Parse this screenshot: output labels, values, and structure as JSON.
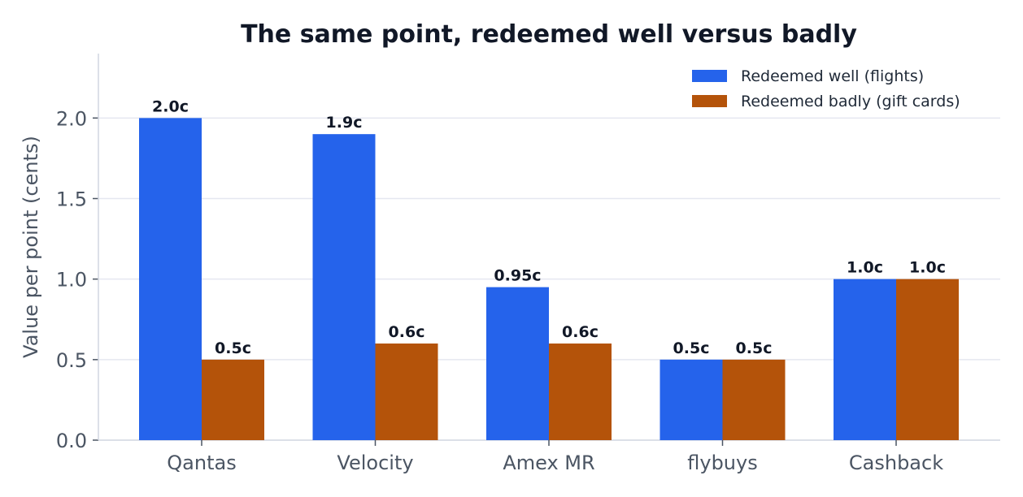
{
  "chart_data": {
    "type": "bar",
    "title": "The same point, redeemed well versus badly",
    "xlabel": "",
    "ylabel": "Value per point (cents)",
    "ylim": [
      0,
      2.4
    ],
    "yticks": [
      0.0,
      0.5,
      1.0,
      1.5,
      2.0
    ],
    "ytick_labels": [
      "0.0",
      "0.5",
      "1.0",
      "1.5",
      "2.0"
    ],
    "categories": [
      "Qantas",
      "Velocity",
      "Amex MR",
      "flybuys",
      "Cashback"
    ],
    "series": [
      {
        "name": "Redeemed well (flights)",
        "color": "#2563eb",
        "values": [
          2.0,
          1.9,
          0.95,
          0.5,
          1.0
        ],
        "labels": [
          "2.0c",
          "1.9c",
          "0.95c",
          "0.5c",
          "1.0c"
        ]
      },
      {
        "name": "Redeemed badly (gift cards)",
        "color": "#b4530a",
        "values": [
          0.5,
          0.6,
          0.6,
          0.5,
          1.0
        ],
        "labels": [
          "0.5c",
          "0.6c",
          "0.6c",
          "0.5c",
          "1.0c"
        ]
      }
    ],
    "grid": "horizontal",
    "legend_position": "top-right"
  }
}
